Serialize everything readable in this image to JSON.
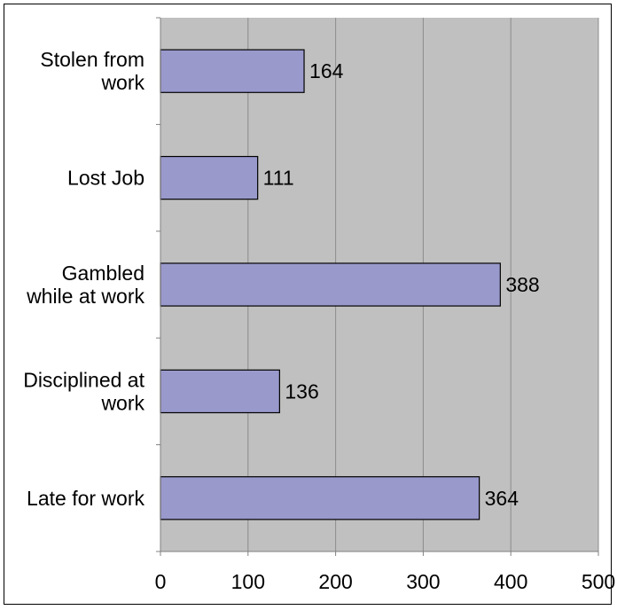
{
  "chart_data": {
    "type": "bar",
    "orientation": "horizontal",
    "categories": [
      [
        "Stolen from",
        "work"
      ],
      [
        "Lost Job"
      ],
      [
        "Gambled",
        "while at work"
      ],
      [
        "Disciplined at",
        "work"
      ],
      [
        "Late for work"
      ]
    ],
    "values": [
      164,
      111,
      388,
      136,
      364
    ],
    "data_labels": [
      "164",
      "111",
      "388",
      "136",
      "364"
    ],
    "xlim": [
      0,
      500
    ],
    "xticks": [
      0,
      100,
      200,
      300,
      400,
      500
    ],
    "title": "",
    "xlabel": "",
    "ylabel": "",
    "grid": true,
    "legend": "none",
    "colors": {
      "bar_fill": "#9999cc",
      "bar_stroke": "#000000",
      "plot_background": "#c0c0c0",
      "gridline": "#8c8c8c"
    }
  }
}
